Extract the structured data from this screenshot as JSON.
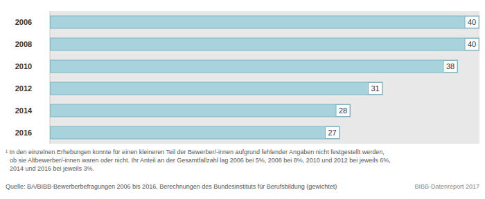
{
  "chart_data": {
    "type": "bar",
    "orientation": "horizontal",
    "categories": [
      "2006",
      "2008",
      "2010",
      "2012",
      "2014",
      "2016"
    ],
    "values": [
      40,
      40,
      38,
      31,
      28,
      27
    ],
    "color": "#a9d3dc",
    "xlim": [
      0,
      40
    ],
    "data_labels": true,
    "tick_labels": "y",
    "footnote": [
      "¹ In den einzelnen Erhebungen konnte für einen kleineren Teil der Bewerber/-innen aufgrund fehlender Angaben nicht festgestellt werden,",
      "ob sie Altbewerber/-innen waren oder nicht. Ihr Anteil an der Gesamtfallzahl lag 2006 bei 5%, 2008 bei 8%, 2010 und 2012 bei jeweils 6%,",
      "2014 und 2016 bei jeweils 3%."
    ],
    "source": "Quelle: BA/BIBB-Bewerberbefragungen 2006 bis 2016, Berechnungen des Bundesinstituts für Berufsbildung (gewichtet)",
    "credit": "BIBB-Datenreport 2017"
  }
}
